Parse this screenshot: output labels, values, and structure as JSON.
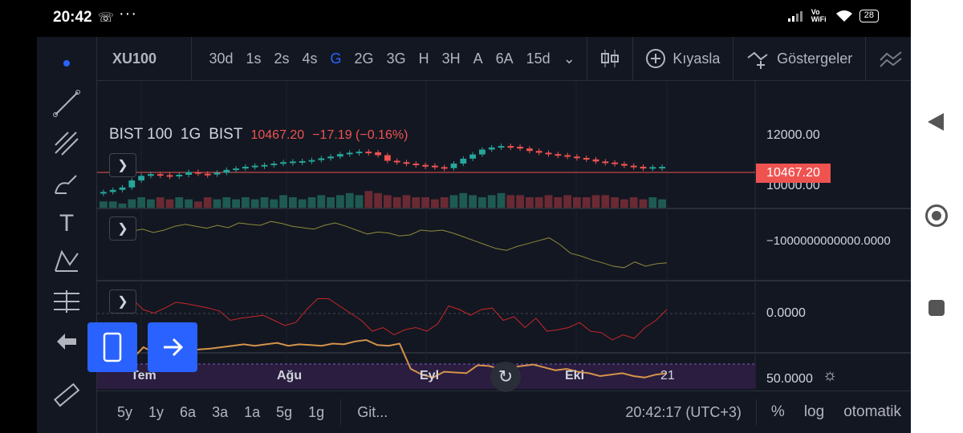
{
  "status_bar": {
    "time": "20:42",
    "call_icon": "wifi-calling-icon",
    "dots": "···",
    "signal": "Vo WiFi",
    "battery": "28"
  },
  "toolbar": {
    "symbol": "XU100",
    "intervals": [
      "30d",
      "1s",
      "2s",
      "4s",
      "G",
      "2G",
      "3G",
      "H",
      "3H",
      "A",
      "6A",
      "15d"
    ],
    "active_interval": "G",
    "compare_label": "Kıyasla",
    "indicators_label": "Göstergeler"
  },
  "legend": {
    "name": "BIST 100",
    "interval": "1G",
    "exchange": "BIST",
    "price": "10467.20",
    "change": "−17.19 (−0.16%)"
  },
  "price_axis": {
    "labels": [
      "12000.00",
      "10000.00"
    ],
    "last_price": "10467.20"
  },
  "pane_axis_labels": [
    "−1000000000000.0000",
    "0.0000",
    "50.0000"
  ],
  "time_axis": {
    "labels": [
      "Tem",
      "Ağu",
      "Eyl",
      "Eki",
      "21"
    ]
  },
  "range_buttons": [
    "5y",
    "1y",
    "6a",
    "3a",
    "1a",
    "5g",
    "1g"
  ],
  "goto_label": "Git...",
  "clock": "20:42:17 (UTC+3)",
  "axis_options": [
    "%",
    "log",
    "otomatik"
  ],
  "colors": {
    "up": "#26a69a",
    "down": "#ef5350",
    "accent": "#2962ff",
    "bg": "#131722",
    "rsi": "#d4934b",
    "rsi_bg": "#2a1d3f"
  },
  "chart_data": {
    "type": "line",
    "price_series": [
      9750,
      9810,
      9880,
      10080,
      10210,
      10260,
      10230,
      10200,
      10240,
      10320,
      10270,
      10250,
      10300,
      10380,
      10420,
      10470,
      10500,
      10520,
      10560,
      10600,
      10620,
      10630,
      10660,
      10710,
      10760,
      10830,
      10870,
      10900,
      10880,
      10800,
      10640,
      10600,
      10560,
      10520,
      10500,
      10460,
      10430,
      10560,
      10700,
      10820,
      10960,
      11020,
      11060,
      11040,
      10990,
      10920,
      10870,
      10830,
      10800,
      10760,
      10720,
      10680,
      10620,
      10590,
      10550,
      10500,
      10470,
      10420,
      10460,
      10467
    ],
    "volume_series": [
      3,
      3,
      2,
      4,
      5,
      4,
      5,
      4,
      5,
      4,
      3,
      5,
      4,
      5,
      4,
      5,
      4,
      5,
      4,
      6,
      5,
      4,
      5,
      6,
      5,
      6,
      7,
      6,
      8,
      7,
      6,
      5,
      6,
      5,
      5,
      4,
      5,
      6,
      7,
      6,
      5,
      6,
      7,
      6,
      6,
      5,
      5,
      6,
      5,
      6,
      5,
      5,
      6,
      6,
      5,
      4,
      5,
      4,
      5,
      4
    ],
    "line1": [
      38,
      32,
      28,
      35,
      30,
      22,
      18,
      22,
      26,
      20,
      25,
      15,
      18,
      20,
      12,
      16,
      22,
      25,
      28,
      20,
      15,
      22,
      30,
      38,
      34,
      36,
      42,
      40,
      30,
      32,
      30,
      36,
      44,
      52,
      60,
      68,
      72,
      64,
      58,
      52,
      46,
      60,
      78,
      84,
      92,
      98,
      105,
      108,
      96,
      105,
      100,
      98
    ],
    "line2": [
      25,
      15,
      30,
      35,
      28,
      20,
      22,
      25,
      28,
      32,
      45,
      42,
      40,
      38,
      45,
      52,
      48,
      30,
      15,
      15,
      25,
      35,
      45,
      60,
      55,
      65,
      58,
      55,
      60,
      50,
      25,
      30,
      38,
      30,
      28,
      45,
      40,
      55,
      42,
      60,
      58,
      55,
      48,
      60,
      62,
      72,
      65,
      70,
      55,
      45,
      30
    ],
    "rsi_series": [
      62,
      54,
      70,
      62,
      66,
      70,
      64,
      67,
      68,
      70,
      72,
      74,
      72,
      74,
      76,
      72,
      74,
      73,
      72,
      75,
      74,
      78,
      80,
      73,
      72,
      75,
      40,
      32,
      28,
      36,
      35,
      34,
      45,
      44,
      40,
      42,
      44,
      46,
      42,
      38,
      40,
      36,
      34,
      30,
      32,
      34,
      30,
      28,
      32,
      34
    ],
    "ylabels": [
      "12000.00",
      "10000.00"
    ]
  }
}
